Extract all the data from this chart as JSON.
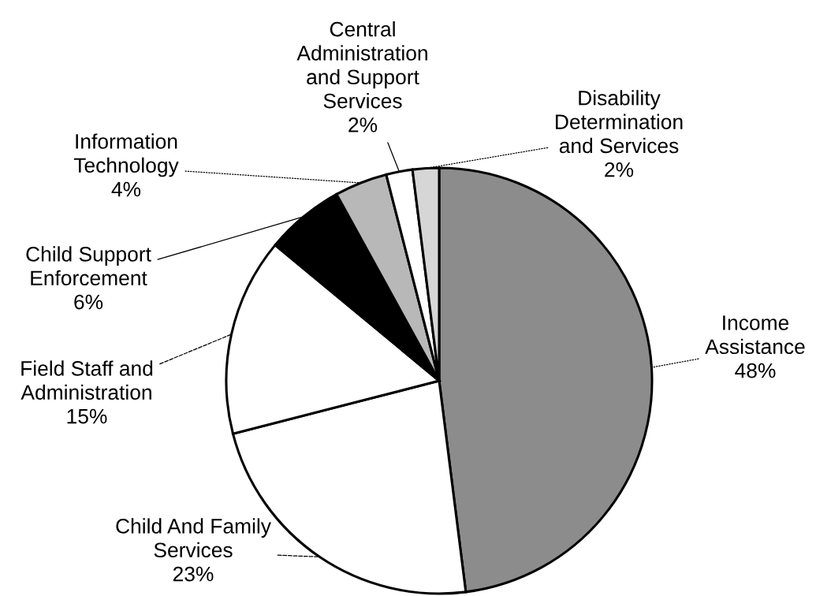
{
  "chart_data": {
    "type": "pie",
    "categories": [
      "Income\nAssistance",
      "Child And Family\nServices",
      "Field Staff and\nAdministration",
      "Child Support\nEnforcement",
      "Information\nTechnology",
      "Central\nAdministration\nand Support\nServices",
      "Disability\nDetermination\nand Services"
    ],
    "values": [
      48,
      23,
      15,
      6,
      4,
      2,
      2
    ],
    "value_labels": [
      "48%",
      "23%",
      "15%",
      "6%",
      "4%",
      "2%",
      "2%"
    ],
    "colors": [
      "#8c8c8c",
      "#ffffff",
      "#ffffff",
      "#000000",
      "#b8b8b8",
      "#ffffff",
      "#d6d6d6"
    ]
  }
}
